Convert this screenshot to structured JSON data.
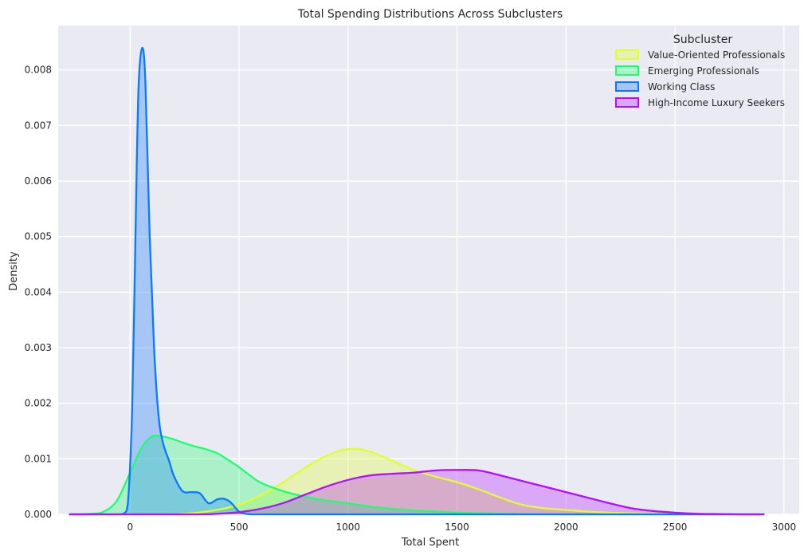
{
  "chart_data": {
    "type": "area",
    "title": "Total Spending Distributions Across Subclusters",
    "xlabel": "Total Spent",
    "ylabel": "Density",
    "xlim": [
      -330,
      3070
    ],
    "ylim": [
      0,
      0.0088
    ],
    "xticks": [
      0,
      500,
      1000,
      1500,
      2000,
      2500,
      3000
    ],
    "yticks": [
      0,
      0.001,
      0.002,
      0.003,
      0.004,
      0.005,
      0.006,
      0.007,
      0.008
    ],
    "ytick_labels": [
      "0.000",
      "0.001",
      "0.002",
      "0.003",
      "0.004",
      "0.005",
      "0.006",
      "0.007",
      "0.008"
    ],
    "grid": true,
    "legend": {
      "title": "Subcluster",
      "position": "top-right"
    },
    "series": [
      {
        "name": "Value-Oriented Professionals",
        "color": "#e1ff28",
        "x": [
          -280,
          150,
          250,
          350,
          450,
          550,
          650,
          750,
          850,
          950,
          1020,
          1100,
          1200,
          1300,
          1400,
          1500,
          1600,
          1700,
          1800,
          1900,
          2000,
          2100,
          2200,
          2300,
          2400,
          2500,
          2600,
          2700,
          2800,
          2910
        ],
        "y": [
          0,
          0,
          1e-05,
          5e-05,
          0.00012,
          0.00025,
          0.00045,
          0.0007,
          0.00095,
          0.00113,
          0.00118,
          0.00113,
          0.00097,
          0.0008,
          0.00068,
          0.00058,
          0.00045,
          0.0003,
          0.00017,
          0.00011,
          8e-05,
          5e-05,
          3e-05,
          2e-05,
          1e-05,
          5e-06,
          2e-06,
          0,
          0,
          0
        ]
      },
      {
        "name": "Emerging Professionals",
        "color": "#1eff6e",
        "x": [
          -280,
          -180,
          -120,
          -60,
          0,
          50,
          100,
          150,
          200,
          250,
          300,
          350,
          400,
          450,
          500,
          550,
          600,
          700,
          800,
          900,
          1000,
          1100,
          1200,
          1300,
          1400,
          1500,
          1600,
          1700,
          1800,
          1900,
          2000,
          2200,
          2400,
          2600,
          2910
        ],
        "y": [
          0,
          1e-05,
          5e-05,
          0.00025,
          0.00075,
          0.00118,
          0.0014,
          0.0014,
          0.00135,
          0.00128,
          0.00122,
          0.00117,
          0.0011,
          0.00098,
          0.00085,
          0.0007,
          0.00057,
          0.00042,
          0.00032,
          0.00025,
          0.0002,
          0.00014,
          0.0001,
          7e-05,
          5e-05,
          3e-05,
          2e-05,
          1e-05,
          5e-06,
          2e-06,
          0,
          0,
          0,
          0,
          0
        ]
      },
      {
        "name": "Working Class",
        "color": "#0a78ff",
        "x": [
          -280,
          -60,
          -30,
          -10,
          10,
          30,
          40,
          55,
          70,
          90,
          110,
          130,
          150,
          180,
          200,
          240,
          280,
          320,
          360,
          400,
          430,
          460,
          500,
          530,
          560,
          620,
          2910
        ],
        "y": [
          0,
          0,
          1e-05,
          0.0002,
          0.002,
          0.0062,
          0.0078,
          0.0084,
          0.0078,
          0.005,
          0.003,
          0.0018,
          0.0013,
          0.00095,
          0.0007,
          0.00042,
          0.0004,
          0.00038,
          0.0002,
          0.00027,
          0.00028,
          0.00022,
          5e-05,
          1e-05,
          0,
          0,
          0
        ]
      },
      {
        "name": "High-Income Luxury Seekers",
        "color": "#b40fff",
        "x": [
          -280,
          300,
          400,
          500,
          600,
          700,
          800,
          900,
          1000,
          1100,
          1200,
          1300,
          1400,
          1500,
          1600,
          1700,
          1800,
          1900,
          2000,
          2100,
          2200,
          2300,
          2400,
          2500,
          2600,
          2700,
          2800,
          2910
        ],
        "y": [
          0,
          0,
          1e-05,
          4e-05,
          0.0001,
          0.0002,
          0.00035,
          0.0005,
          0.00062,
          0.0007,
          0.00073,
          0.00075,
          0.00079,
          0.0008,
          0.00079,
          0.0007,
          0.0006,
          0.0005,
          0.0004,
          0.0003,
          0.0002,
          0.00011,
          6e-05,
          3e-05,
          1e-05,
          5e-06,
          0,
          0
        ]
      }
    ]
  }
}
